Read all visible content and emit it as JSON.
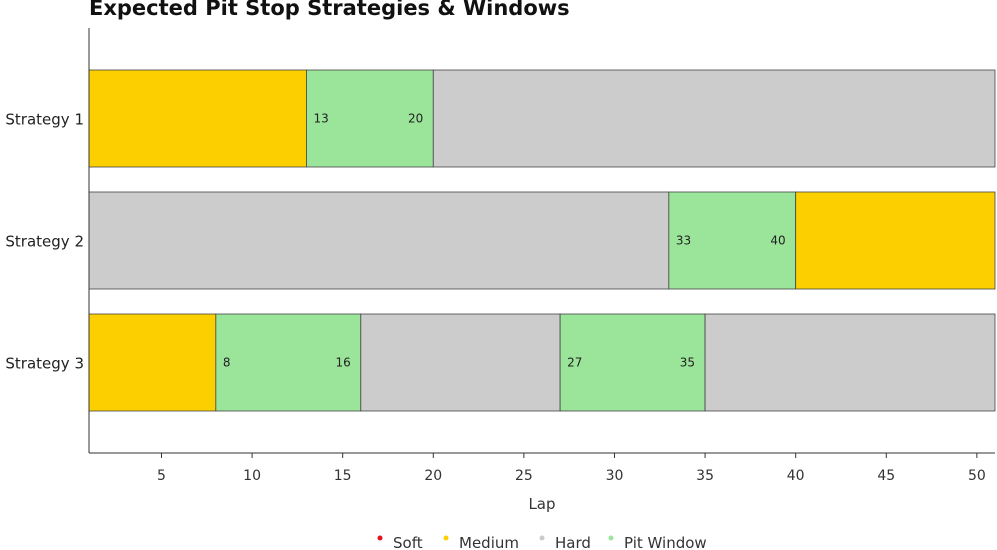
{
  "chart_data": {
    "type": "bar",
    "orientation": "horizontal-stacked",
    "title": "Expected Pit Stop Strategies & Windows",
    "xlabel": "Lap",
    "ylabel": "",
    "xlim": [
      1,
      51
    ],
    "xticks": [
      5,
      10,
      15,
      20,
      25,
      30,
      35,
      40,
      45,
      50
    ],
    "grid": false,
    "legend_position": "bottom",
    "colors": {
      "Soft": "#e8101a",
      "Medium": "#fccf00",
      "Hard": "#cccccc",
      "Pit Window": "#9be59b"
    },
    "legend": [
      "Soft",
      "Medium",
      "Hard",
      "Pit Window"
    ],
    "categories": [
      "Strategy 1",
      "Strategy 2",
      "Strategy 3"
    ],
    "strategies": [
      {
        "name": "Strategy 1",
        "segments": [
          {
            "compound": "Medium",
            "start": 1,
            "end": 13
          },
          {
            "compound": "Pit Window",
            "start": 13,
            "end": 20
          },
          {
            "compound": "Hard",
            "start": 20,
            "end": 51
          }
        ]
      },
      {
        "name": "Strategy 2",
        "segments": [
          {
            "compound": "Hard",
            "start": 1,
            "end": 33
          },
          {
            "compound": "Pit Window",
            "start": 33,
            "end": 40
          },
          {
            "compound": "Medium",
            "start": 40,
            "end": 51
          }
        ]
      },
      {
        "name": "Strategy 3",
        "segments": [
          {
            "compound": "Medium",
            "start": 1,
            "end": 8
          },
          {
            "compound": "Pit Window",
            "start": 8,
            "end": 16
          },
          {
            "compound": "Hard",
            "start": 16,
            "end": 27
          },
          {
            "compound": "Pit Window",
            "start": 27,
            "end": 35
          },
          {
            "compound": "Hard",
            "start": 35,
            "end": 51
          }
        ]
      }
    ]
  }
}
